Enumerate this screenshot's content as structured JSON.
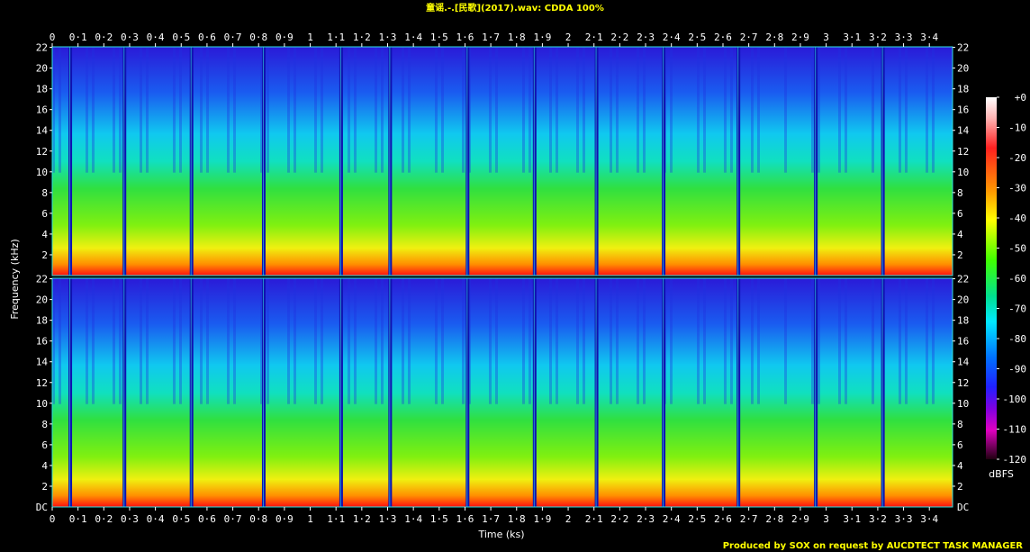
{
  "page_title": "童谣.-.[民歌](2017).wav: CDDA 100%",
  "credit": "Produced by SOX on request by AUCDTECT TASK MANAGER",
  "chart_data": {
    "type": "heatmap",
    "title": "童谣.-.[民歌](2017).wav: CDDA 100%",
    "xlabel": "Time (ks)",
    "ylabel": "Frequency (kHz)",
    "colorbar_label": "dBFS",
    "channels": 2,
    "x_ticks": [
      "0",
      "0·1",
      "0·2",
      "0·3",
      "0·4",
      "0·5",
      "0·6",
      "0·7",
      "0·8",
      "0·9",
      "1",
      "1·1",
      "1·2",
      "1·3",
      "1·4",
      "1·5",
      "1·6",
      "1·7",
      "1·8",
      "1·9",
      "2",
      "2·1",
      "2·2",
      "2·3",
      "2·4",
      "2·5",
      "2·6",
      "2·7",
      "2·8",
      "2·9",
      "3",
      "3·1",
      "3·2",
      "3·3",
      "3·4"
    ],
    "x_range": [
      0,
      3.49
    ],
    "y_ticks": [
      "22",
      "20",
      "18",
      "16",
      "14",
      "12",
      "10",
      "8",
      "6",
      "4",
      "2"
    ],
    "y_bottom_label": "DC",
    "y_range_khz": [
      0,
      22.05
    ],
    "colorbar_ticks": [
      "+0",
      "-10",
      "-20",
      "-30",
      "-40",
      "-50",
      "-60",
      "-70",
      "-80",
      "-90",
      "-100",
      "-110",
      "-120"
    ],
    "colorbar_range_db": [
      -120,
      0
    ],
    "track_boundaries_ks": [
      0.07,
      0.28,
      0.54,
      0.82,
      1.12,
      1.31,
      1.61,
      1.87,
      2.11,
      2.37,
      2.66,
      2.96,
      3.22
    ],
    "colors": {
      "background": "#000000",
      "axis_text": "#ffffff",
      "title": "#ffff00"
    }
  }
}
